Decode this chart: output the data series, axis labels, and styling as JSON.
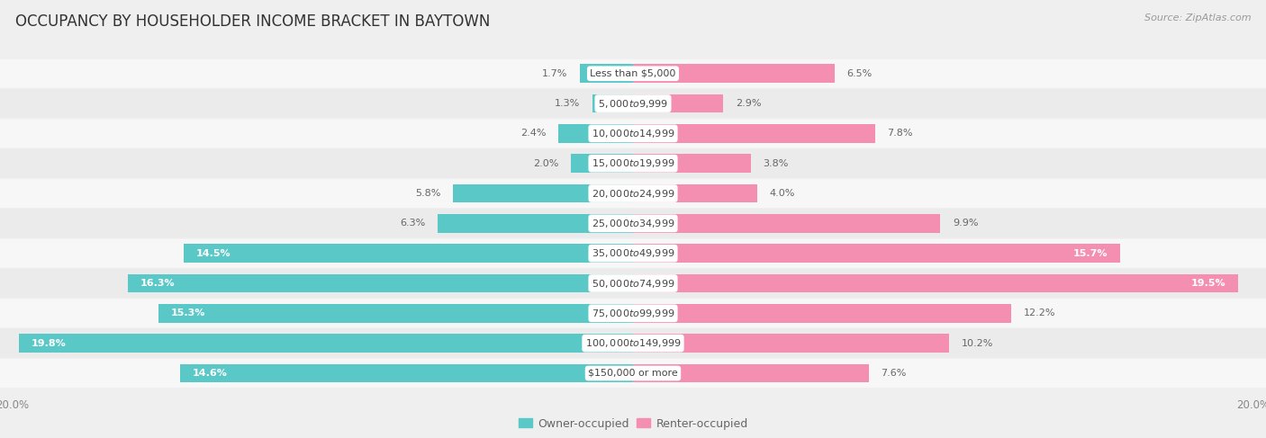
{
  "title": "OCCUPANCY BY HOUSEHOLDER INCOME BRACKET IN BAYTOWN",
  "source": "Source: ZipAtlas.com",
  "categories": [
    "Less than $5,000",
    "$5,000 to $9,999",
    "$10,000 to $14,999",
    "$15,000 to $19,999",
    "$20,000 to $24,999",
    "$25,000 to $34,999",
    "$35,000 to $49,999",
    "$50,000 to $74,999",
    "$75,000 to $99,999",
    "$100,000 to $149,999",
    "$150,000 or more"
  ],
  "owner_values": [
    1.7,
    1.3,
    2.4,
    2.0,
    5.8,
    6.3,
    14.5,
    16.3,
    15.3,
    19.8,
    14.6
  ],
  "renter_values": [
    6.5,
    2.9,
    7.8,
    3.8,
    4.0,
    9.9,
    15.7,
    19.5,
    12.2,
    10.2,
    7.6
  ],
  "owner_color": "#5bc8c8",
  "renter_color": "#f48fb1",
  "background_color": "#efefef",
  "bar_bg_light": "#f7f7f7",
  "bar_bg_dark": "#ebebeb",
  "max_value": 20.0,
  "title_fontsize": 12,
  "label_fontsize": 8,
  "value_fontsize": 8,
  "axis_label_fontsize": 8.5,
  "legend_fontsize": 9,
  "source_fontsize": 8
}
